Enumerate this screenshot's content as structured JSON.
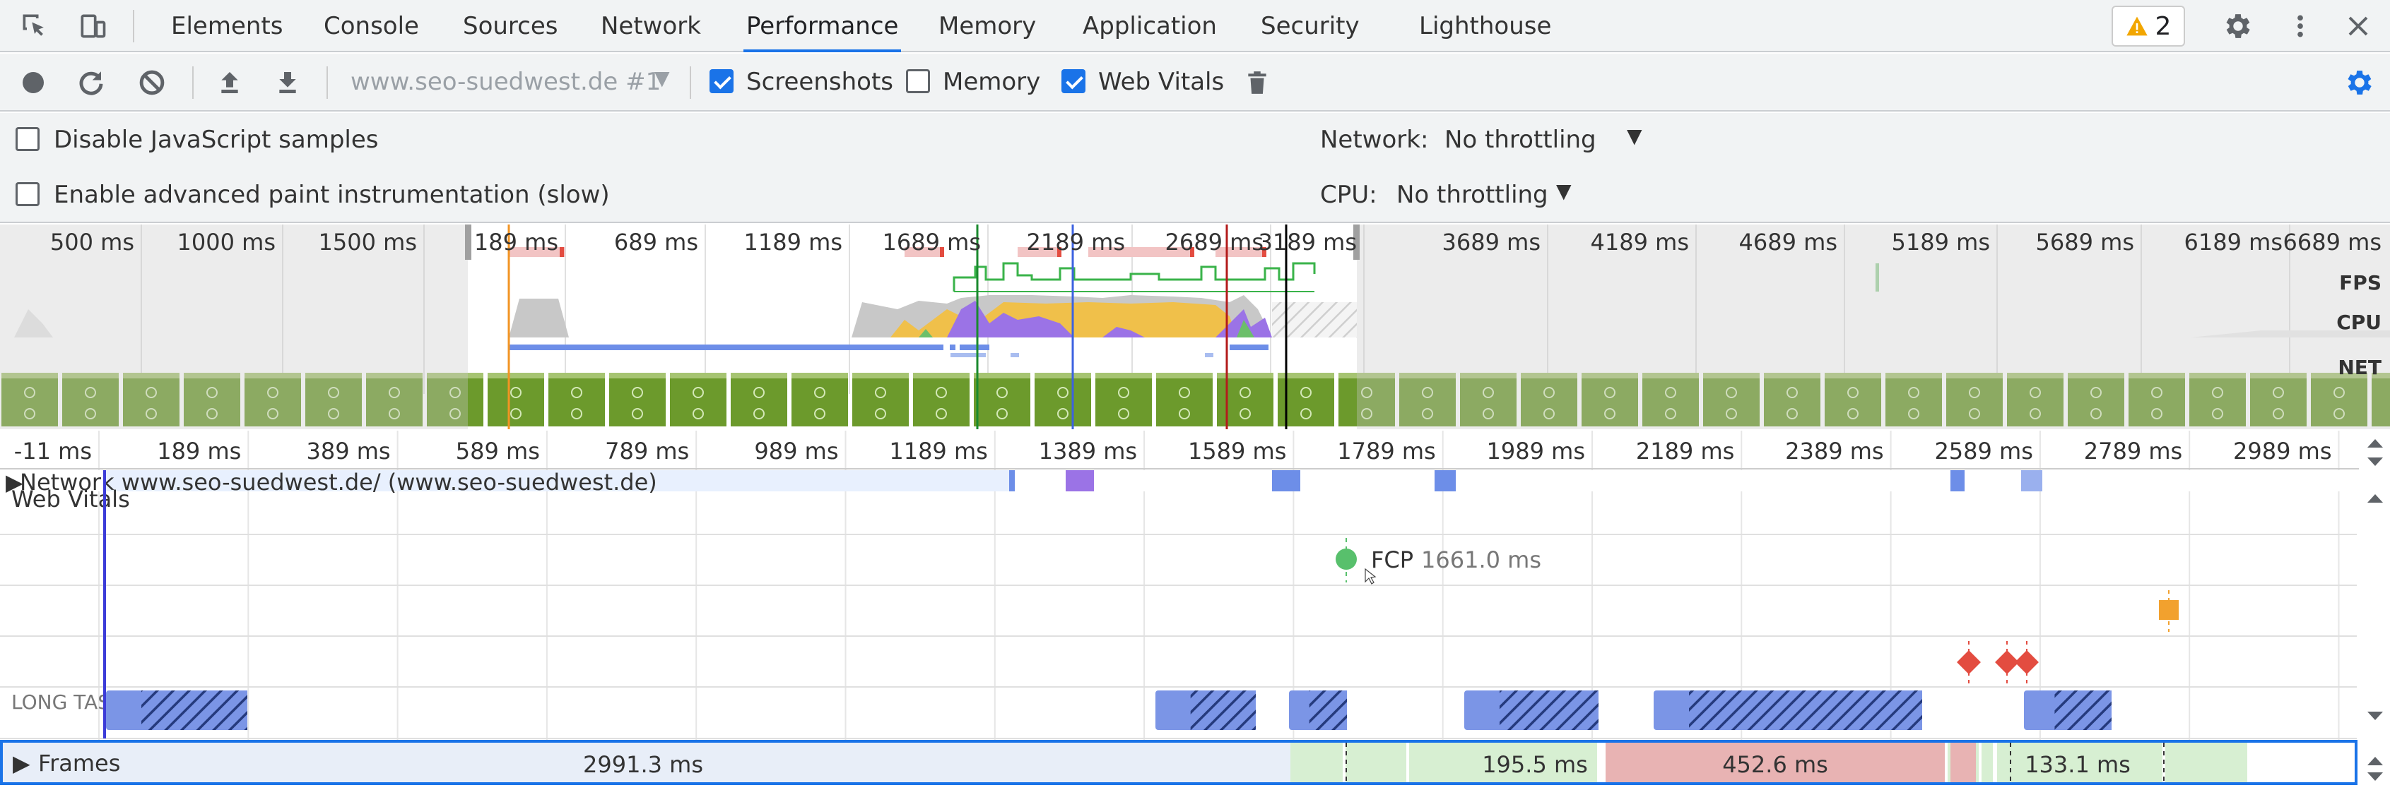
{
  "tabs": [
    "Elements",
    "Console",
    "Sources",
    "Network",
    "Performance",
    "Memory",
    "Application",
    "Security",
    "Lighthouse"
  ],
  "active_tab": "Performance",
  "warnings": {
    "count": "2"
  },
  "toolbar": {
    "profile_select": "www.seo-suedwest.de #1",
    "screenshots_label": "Screenshots",
    "screenshots_checked": true,
    "memory_label": "Memory",
    "memory_checked": false,
    "webvitals_label": "Web Vitals",
    "webvitals_checked": true
  },
  "settings": {
    "disable_js_label": "Disable JavaScript samples",
    "advanced_paint_label": "Enable advanced paint instrumentation (slow)",
    "network_label": "Network:",
    "network_value": "No throttling",
    "cpu_label": "CPU:",
    "cpu_value": "No throttling"
  },
  "overview": {
    "ticks_left": [
      "500 ms",
      "1000 ms",
      "1500 ms"
    ],
    "ticks_mid": [
      "189 ms",
      "689 ms",
      "1189 ms",
      "1689 ms",
      "2189 ms",
      "2689 ms",
      "3189 ms"
    ],
    "ticks_right": [
      "3689 ms",
      "4189 ms",
      "4689 ms",
      "5189 ms",
      "5689 ms",
      "6189 ms",
      "6689 ms"
    ],
    "lanes": [
      "FPS",
      "CPU",
      "NET"
    ]
  },
  "timeline": {
    "ruler": [
      "-11 ms",
      "189 ms",
      "389 ms",
      "589 ms",
      "789 ms",
      "989 ms",
      "1189 ms",
      "1389 ms",
      "1589 ms",
      "1789 ms",
      "1989 ms",
      "2189 ms",
      "2389 ms",
      "2589 ms",
      "2789 ms",
      "2989 ms"
    ],
    "network_track": "Network www.seo-suedwest.de/ (www.seo-suedwest.de)",
    "web_vitals_title": "Web Vitals",
    "fcp_label": "FCP",
    "fcp_value": "1661.0 ms",
    "long_tasks_label": "LONG TASKS",
    "frames_label": "Frames",
    "frame_durations": [
      "2991.3 ms",
      "195.5 ms",
      "452.6 ms",
      "133.1 ms"
    ]
  },
  "colors": {
    "accent": "#1a73e8",
    "fps": "#3ab34a",
    "scripting": "#f0c04a",
    "rendering": "#9b73e6",
    "painting": "#6cbf6a",
    "idle": "#c8c8c8",
    "frame_good": "#d7efd2",
    "frame_bad": "#e8b3b3",
    "fcp": "#58c06c",
    "layout_shift": "#e34c40",
    "lcp": "#f2a12e",
    "long_task": "#6d8ee8"
  }
}
